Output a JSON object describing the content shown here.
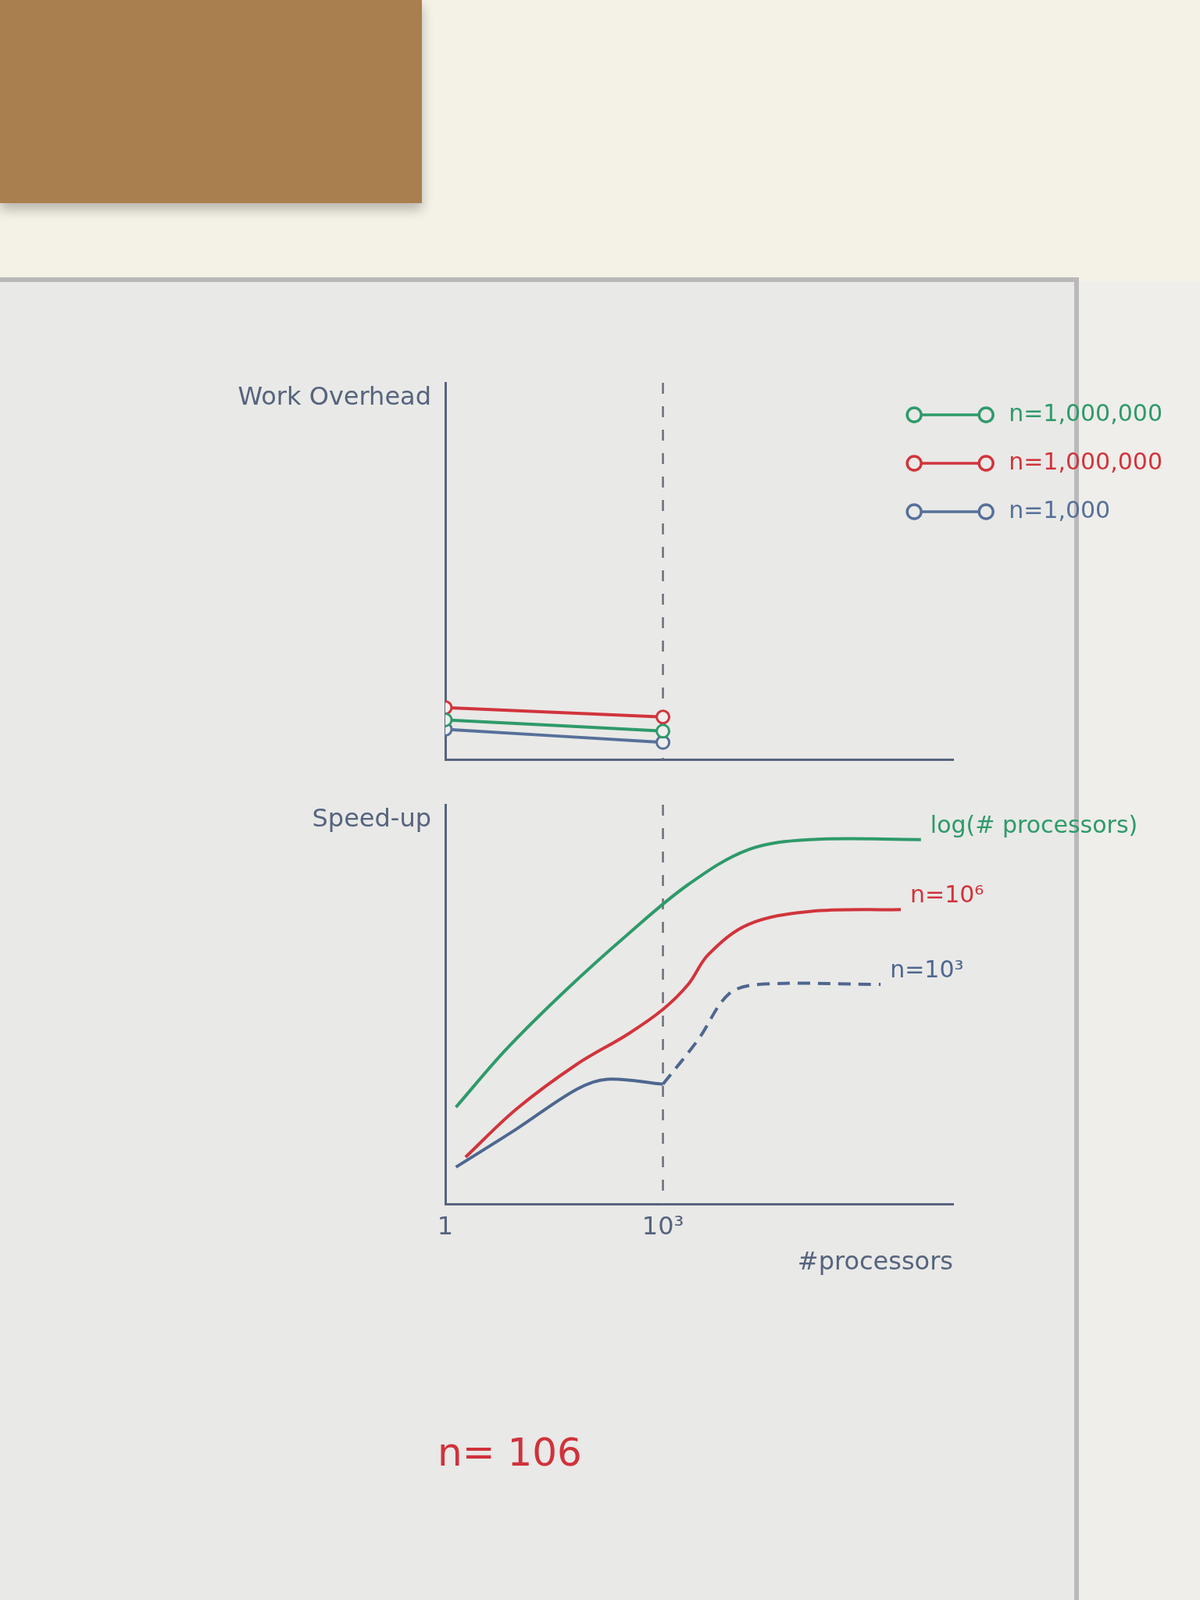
{
  "chart_data": [
    {
      "type": "line",
      "ylabel": "Work Overhead",
      "log": "x",
      "xlim": [
        1,
        10000000
      ],
      "xticks": [
        1,
        1000
      ],
      "ylim": [
        0,
        4
      ],
      "grid": "x",
      "tick_labels": false,
      "legend": "upper right",
      "marker": "circle",
      "series": [
        {
          "name": "n=1,000,000",
          "color": "#2e9a6a",
          "x": [
            1,
            1000
          ],
          "values": [
            0.42,
            0.3
          ]
        },
        {
          "name": "n=1,000,000",
          "color": "#d1343c",
          "x": [
            1,
            1000
          ],
          "values": [
            0.55,
            0.45
          ]
        },
        {
          "name": "n=1,000",
          "color": "#56709a",
          "x": [
            1,
            1000
          ],
          "values": [
            0.32,
            0.18
          ]
        }
      ]
    },
    {
      "type": "line",
      "ylabel": "Speed-up",
      "xlabel": "#processors",
      "log": "x",
      "xlim": [
        1,
        10000000
      ],
      "xticks": [
        1,
        {
          "value": 1000,
          "label": "10³"
        }
      ],
      "ylim": [
        0,
        4
      ],
      "grid": "x",
      "tick_labels": "x",
      "marker": "none",
      "annotations": [
        "n= 106"
      ],
      "series": [
        {
          "name": "log(# processors)",
          "color": "#2e9a6a",
          "line_style": "solid",
          "x": [
            1.4,
            6.9,
            47,
            325,
            2230,
            15000,
            105000,
            3600000
          ],
          "values": [
            0.97,
            1.55,
            2.15,
            2.7,
            3.2,
            3.55,
            3.65,
            3.65
          ]
        },
        {
          "name": "n=10⁶",
          "color": "#d1343c",
          "line_style": "solid",
          "x": [
            1.9,
            9.5,
            65,
            325,
            1000,
            2230,
            4240,
            15000,
            105000,
            1900000
          ],
          "values": [
            0.47,
            0.95,
            1.4,
            1.7,
            1.95,
            2.2,
            2.5,
            2.8,
            2.93,
            2.95
          ]
        },
        {
          "color": "#4d6790",
          "line_style": "solid",
          "x": [
            1.4,
            9.5,
            65,
            170,
            1000
          ],
          "values": [
            0.37,
            0.75,
            1.15,
            1.25,
            1.2
          ]
        },
        {
          "name": "n=10³",
          "color": "#4d6790",
          "line_style": "dashed",
          "x": [
            1000,
            3080,
            8000,
            21000,
            1000000
          ],
          "values": [
            1.2,
            1.65,
            2.1,
            2.2,
            2.2
          ]
        }
      ]
    }
  ]
}
